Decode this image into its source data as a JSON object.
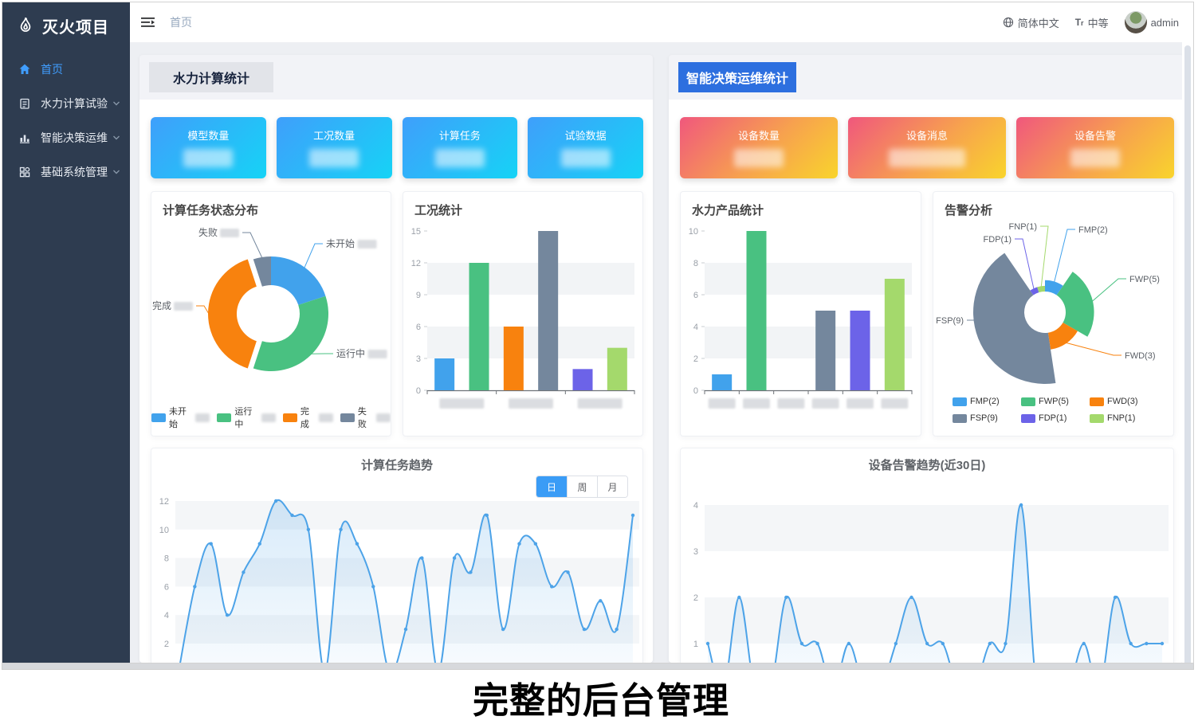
{
  "app": {
    "logo_title": "灭火项目"
  },
  "sidebar": {
    "items": [
      {
        "label": "首页",
        "active": true
      },
      {
        "label": "水力计算试验"
      },
      {
        "label": "智能决策运维"
      },
      {
        "label": "基础系统管理"
      }
    ]
  },
  "header": {
    "breadcrumb": "首页",
    "language": "简体中文",
    "font_size_label": "中等",
    "username": "admin"
  },
  "panels": {
    "left": {
      "title": "水力计算统计",
      "cards": [
        {
          "label": "模型数量",
          "value_redacted": true
        },
        {
          "label": "工况数量",
          "value_redacted": true
        },
        {
          "label": "计算任务",
          "value_redacted": true
        },
        {
          "label": "试验数据",
          "value_redacted": true
        }
      ]
    },
    "right": {
      "title": "智能决策运维统计",
      "cards": [
        {
          "label": "设备数量",
          "value_redacted": true
        },
        {
          "label": "设备消息",
          "value_redacted": true
        },
        {
          "label": "设备告警",
          "value_redacted": true
        }
      ]
    }
  },
  "caption": "完整的后台管理",
  "colors": {
    "accent": "#409eff",
    "sidebar_bg": "#2e3c50",
    "card_blue_from": "#3f9ffb",
    "card_blue_to": "#16d3f6",
    "card_warm_from": "#f0577d",
    "card_warm_to": "#f9d42c",
    "palette": [
      "#41a2ec",
      "#49c181",
      "#f8820e",
      "#74879d",
      "#6c63e8",
      "#a4d96c"
    ],
    "line": "#4da3e8"
  },
  "chart_data": [
    {
      "type": "pie",
      "title": "计算任务状态分布",
      "labels": [
        "未开始",
        "运行中",
        "完成",
        "失败"
      ],
      "values": [
        4,
        7,
        8,
        1
      ],
      "values_redacted": true,
      "values_note": "numeric slice values blurred in source; proportions estimated from arc angles",
      "selected_slice": "完成",
      "legend_position": "bottom",
      "colors": [
        "#41a2ec",
        "#49c181",
        "#f8820e",
        "#74879d"
      ]
    },
    {
      "type": "bar",
      "title": "工况统计",
      "values": [
        3,
        12,
        6,
        15,
        2,
        4
      ],
      "ylim": [
        0,
        15
      ],
      "yticks": [
        0,
        3,
        6,
        9,
        12,
        15
      ],
      "categories_redacted": true,
      "category_groups": 3
    },
    {
      "type": "bar",
      "title": "水力产品统计",
      "values": [
        1,
        10,
        0,
        5,
        5,
        7
      ],
      "ylim": [
        0,
        10
      ],
      "yticks": [
        0,
        2,
        4,
        6,
        8,
        10
      ],
      "categories_redacted": true,
      "category_groups": 6
    },
    {
      "type": "pie",
      "subtype": "rose",
      "title": "告警分析",
      "labels": [
        "FMP(2)",
        "FWP(5)",
        "FWD(3)",
        "FSP(9)",
        "FDP(1)",
        "FNP(1)"
      ],
      "values": [
        2,
        5,
        3,
        9,
        1,
        1
      ],
      "legend": [
        "FMP(2)",
        "FWP(5)",
        "FWD(3)",
        "FSP(9)",
        "FDP(1)",
        "FNP(1)"
      ],
      "legend_position": "bottom",
      "colors": [
        "#41a2ec",
        "#49c181",
        "#f8820e",
        "#74879d",
        "#6c63e8",
        "#a4d96c"
      ]
    },
    {
      "type": "line",
      "title": "计算任务趋势",
      "tabs": [
        "日",
        "周",
        "月"
      ],
      "active_tab": "日",
      "y": [
        0,
        6,
        9,
        4,
        7,
        9,
        12,
        11,
        10,
        0,
        10,
        9,
        6,
        0,
        3,
        8,
        0,
        8,
        7,
        11,
        3,
        9,
        9,
        6,
        7,
        3,
        5,
        3,
        11
      ],
      "ylim": [
        0,
        12
      ],
      "yticks": [
        2,
        4,
        6,
        8,
        10,
        12
      ],
      "x_axis_note": "x axis cropped at bottom of screenshot"
    },
    {
      "type": "line",
      "title": "设备告警趋势(近30日)",
      "y": [
        1,
        0,
        2,
        0,
        0,
        2,
        1,
        1,
        0,
        1,
        0,
        0,
        1,
        2,
        1,
        1,
        0,
        0,
        1,
        1,
        4,
        0,
        0,
        0,
        1,
        0,
        2,
        1,
        1,
        1
      ],
      "ylim": [
        0,
        4
      ],
      "yticks": [
        1,
        2,
        3,
        4
      ],
      "x_axis_note": "x axis cropped at bottom of screenshot"
    }
  ]
}
